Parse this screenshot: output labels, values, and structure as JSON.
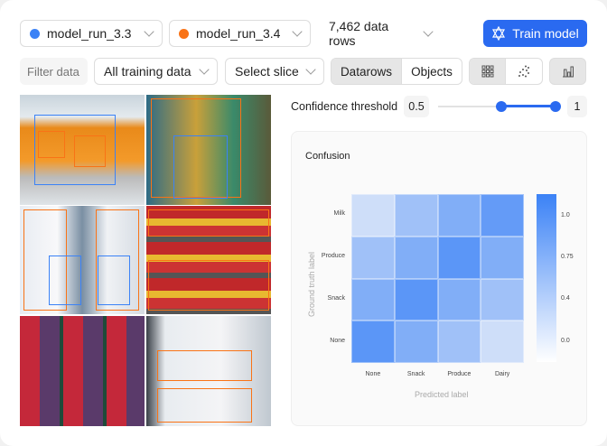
{
  "toolbar": {
    "model_a": "model_run_3.3",
    "model_a_color": "#3b82f6",
    "model_b": "model_run_3.4",
    "model_b_color": "#f97316",
    "rows": "7,462 data rows",
    "train": "Train model"
  },
  "filters": {
    "placeholder": "Filter data...",
    "dataset": "All training data",
    "slice": "Select slice",
    "view_datarows": "Datarows",
    "view_objects": "Objects",
    "active_view": "Datarows"
  },
  "threshold": {
    "label": "Confidence threshold",
    "low": "0.5",
    "high": "1",
    "low_value": 0.5,
    "high_value": 1
  },
  "chart_data": {
    "type": "heatmap",
    "title": "Confusion",
    "xlabel": "Predicted label",
    "ylabel": "Ground truth label",
    "x_categories": [
      "None",
      "Snack",
      "Produce",
      "Dairy"
    ],
    "y_categories": [
      "Milk",
      "Produce",
      "Snack",
      "None"
    ],
    "values": [
      [
        0.1,
        0.4,
        0.6,
        0.8
      ],
      [
        0.4,
        0.6,
        0.85,
        0.6
      ],
      [
        0.6,
        0.85,
        0.6,
        0.4
      ],
      [
        0.85,
        0.6,
        0.4,
        0.1
      ]
    ],
    "colorbar_ticks": [
      "1.0",
      "0.75",
      "0.4",
      "0.0"
    ],
    "color": "#3b82f6"
  }
}
